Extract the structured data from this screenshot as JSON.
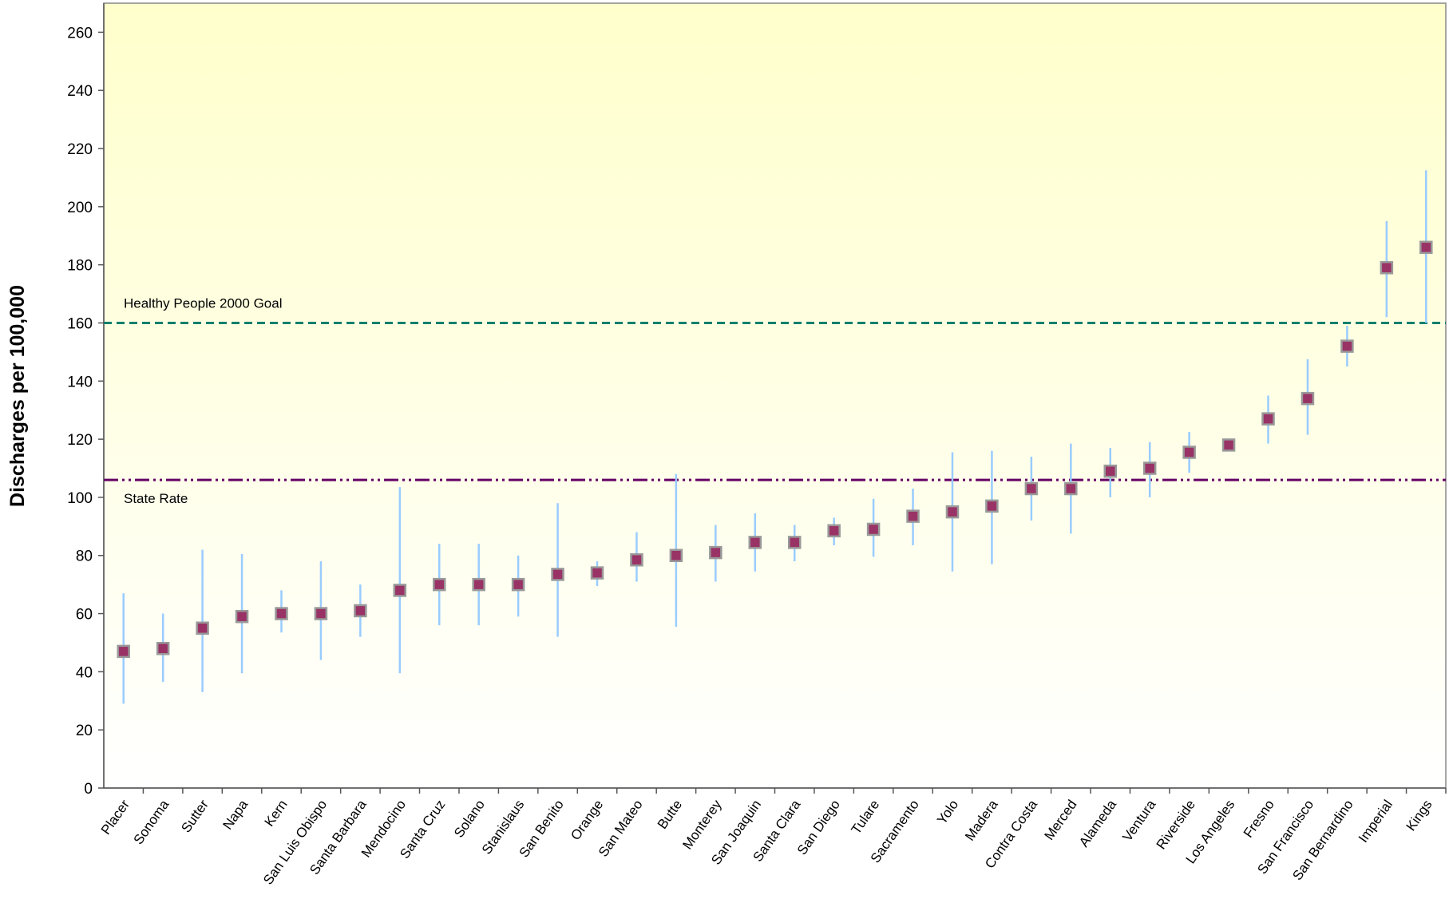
{
  "chart_data": {
    "type": "errorbar",
    "y_label": "Discharges per 100,000",
    "categories": [
      "Placer",
      "Sonoma",
      "Sutter",
      "Napa",
      "Kern",
      "San Luis Obispo",
      "Santa Barbara",
      "Mendocino",
      "Santa Cruz",
      "Solano",
      "Stanislaus",
      "San Benito",
      "Orange",
      "San Mateo",
      "Butte",
      "Monterey",
      "San Joaquin",
      "Santa Clara",
      "San Diego",
      "Tulare",
      "Sacramento",
      "Yolo",
      "Madera",
      "Contra Costa",
      "Merced",
      "Alameda",
      "Ventura",
      "Riverside",
      "Los Angeles",
      "Fresno",
      "San Francisco",
      "San Bernardino",
      "Imperial",
      "Kings"
    ],
    "values": [
      47,
      48,
      55,
      59,
      60,
      60,
      61,
      68,
      70,
      70,
      70,
      73.5,
      74,
      78.5,
      80,
      81,
      84.5,
      84.5,
      88.5,
      89,
      93.5,
      95,
      97,
      103,
      103,
      109,
      110,
      115.5,
      118,
      127,
      134,
      152,
      179,
      186
    ],
    "lower": [
      29,
      36.5,
      33,
      39.5,
      53.5,
      44,
      52,
      39.5,
      56,
      56,
      59,
      52,
      69.5,
      71,
      55.5,
      71,
      74.5,
      78,
      83.5,
      79.5,
      83.5,
      74.5,
      77,
      92,
      87.5,
      100,
      100,
      108.5,
      116,
      118.5,
      121.5,
      145,
      162,
      160
    ],
    "upper": [
      67,
      60,
      82,
      80.5,
      68,
      78,
      70,
      103.5,
      84,
      84,
      80,
      98,
      78,
      88,
      108,
      90.5,
      94.5,
      90.5,
      93,
      99.5,
      103,
      115.5,
      116,
      114,
      118.5,
      117,
      119,
      122.5,
      120,
      135,
      147.5,
      159,
      195,
      212.5
    ],
    "color": "#993366",
    "error_color": "#99ccff",
    "ylim": [
      0,
      270
    ],
    "yticks": [
      0,
      20,
      40,
      60,
      80,
      100,
      120,
      140,
      160,
      180,
      200,
      220,
      240,
      260
    ],
    "reference_lines": [
      {
        "label": "Healthy People 2000 Goal",
        "value": 160,
        "color": "#00806e",
        "dash": "10 6"
      },
      {
        "label": "State Rate",
        "value": 106,
        "color": "#660066",
        "dash": "18 5 3 5 3 5"
      }
    ]
  }
}
